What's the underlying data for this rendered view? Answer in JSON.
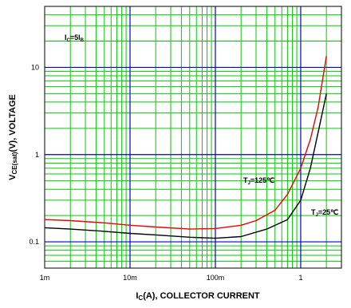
{
  "chart_data": {
    "type": "line",
    "x_scale": "log",
    "y_scale": "log",
    "xlim": [
      0.001,
      3
    ],
    "ylim": [
      0.05,
      50
    ],
    "x_ticks": [
      {
        "value": 0.001,
        "label": "1m"
      },
      {
        "value": 0.01,
        "label": "10m"
      },
      {
        "value": 0.1,
        "label": "100m"
      },
      {
        "value": 1,
        "label": "1"
      }
    ],
    "y_ticks": [
      {
        "value": 0.1,
        "label": "0.1"
      },
      {
        "value": 1,
        "label": "1"
      },
      {
        "value": 10,
        "label": "10"
      }
    ],
    "xlabel": {
      "main": "I",
      "sub": "C",
      "rest": "(A), COLLECTOR CURRENT"
    },
    "ylabel": {
      "main": "V",
      "sub": "CE(sat)",
      "rest": "(V), VOLTAGE"
    },
    "grid": true,
    "grid_colors": {
      "minor": "#00cc00",
      "major": "#0000cc"
    },
    "condition": {
      "main": "I",
      "sub1": "C",
      "mid": "=5I",
      "sub2": "B"
    },
    "series": [
      {
        "name_parts": {
          "main": "T",
          "sub": "J",
          "rest": "=125℃"
        },
        "color": "#ee0000",
        "points": [
          [
            0.001,
            0.18
          ],
          [
            0.002,
            0.175
          ],
          [
            0.005,
            0.165
          ],
          [
            0.01,
            0.155
          ],
          [
            0.02,
            0.148
          ],
          [
            0.05,
            0.14
          ],
          [
            0.1,
            0.142
          ],
          [
            0.2,
            0.155
          ],
          [
            0.3,
            0.175
          ],
          [
            0.5,
            0.23
          ],
          [
            0.7,
            0.35
          ],
          [
            1.0,
            0.7
          ],
          [
            1.3,
            1.5
          ],
          [
            1.6,
            3.5
          ],
          [
            2.0,
            13.5
          ]
        ]
      },
      {
        "name_parts": {
          "main": "T",
          "sub": "J",
          "rest": "=25℃"
        },
        "color": "#000000",
        "points": [
          [
            0.001,
            0.145
          ],
          [
            0.002,
            0.14
          ],
          [
            0.005,
            0.132
          ],
          [
            0.01,
            0.125
          ],
          [
            0.02,
            0.12
          ],
          [
            0.05,
            0.113
          ],
          [
            0.1,
            0.11
          ],
          [
            0.2,
            0.115
          ],
          [
            0.4,
            0.14
          ],
          [
            0.7,
            0.18
          ],
          [
            1.0,
            0.3
          ],
          [
            1.3,
            0.7
          ],
          [
            1.6,
            1.8
          ],
          [
            2.0,
            5.0
          ]
        ]
      }
    ]
  }
}
